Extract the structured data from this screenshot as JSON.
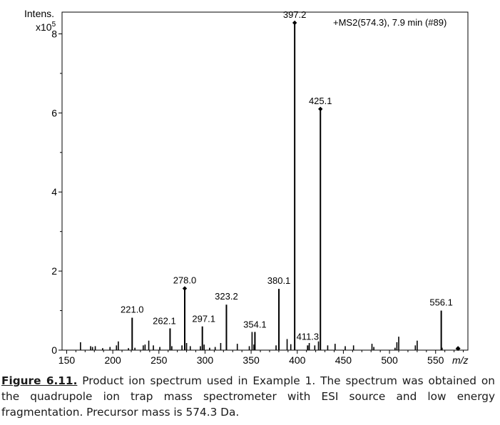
{
  "chart_data": {
    "type": "bar",
    "subtype": "mass-spectrum-stick",
    "ylabel_line1": "Intens.",
    "ylabel_line2": "x10",
    "ylabel_exponent": "5",
    "xlabel": "m/z",
    "header": "+MS2(574.3), 7.9 min (#89)",
    "xlim": [
      145,
      585
    ],
    "ylim": [
      0,
      8.55
    ],
    "xticks": [
      150,
      200,
      250,
      300,
      350,
      400,
      450,
      500,
      550
    ],
    "yticks": [
      0,
      2,
      4,
      6,
      8
    ],
    "labeled_peaks": [
      {
        "mz": 221.0,
        "intensity": 0.82,
        "label": "221.0"
      },
      {
        "mz": 262.1,
        "intensity": 0.55,
        "label": "262.1"
      },
      {
        "mz": 278.0,
        "intensity": 1.56,
        "label": "278.0",
        "marker": true
      },
      {
        "mz": 297.1,
        "intensity": 0.6,
        "label": "297.1"
      },
      {
        "mz": 323.2,
        "intensity": 1.15,
        "label": "323.2"
      },
      {
        "mz": 354.1,
        "intensity": 0.46,
        "label": "354.1"
      },
      {
        "mz": 380.1,
        "intensity": 1.55,
        "label": "380.1"
      },
      {
        "mz": 397.2,
        "intensity": 8.28,
        "label": "397.2",
        "marker": true
      },
      {
        "mz": 411.3,
        "intensity": 0.12,
        "label": "411.3"
      },
      {
        "mz": 425.1,
        "intensity": 6.1,
        "label": "425.1",
        "marker": true
      },
      {
        "mz": 556.1,
        "intensity": 1.0,
        "label": "556.1"
      }
    ],
    "minor_peaks": [
      {
        "mz": 165,
        "intensity": 0.2
      },
      {
        "mz": 176,
        "intensity": 0.1
      },
      {
        "mz": 178,
        "intensity": 0.08
      },
      {
        "mz": 181,
        "intensity": 0.1
      },
      {
        "mz": 189,
        "intensity": 0.05
      },
      {
        "mz": 197,
        "intensity": 0.08
      },
      {
        "mz": 204,
        "intensity": 0.12
      },
      {
        "mz": 206,
        "intensity": 0.22
      },
      {
        "mz": 217,
        "intensity": 0.05
      },
      {
        "mz": 224,
        "intensity": 0.06
      },
      {
        "mz": 233,
        "intensity": 0.12
      },
      {
        "mz": 235,
        "intensity": 0.14
      },
      {
        "mz": 239,
        "intensity": 0.24
      },
      {
        "mz": 244,
        "intensity": 0.12
      },
      {
        "mz": 251,
        "intensity": 0.08
      },
      {
        "mz": 264,
        "intensity": 0.1
      },
      {
        "mz": 275,
        "intensity": 0.12
      },
      {
        "mz": 280,
        "intensity": 0.18
      },
      {
        "mz": 284,
        "intensity": 0.1
      },
      {
        "mz": 295,
        "intensity": 0.1
      },
      {
        "mz": 299,
        "intensity": 0.14
      },
      {
        "mz": 305,
        "intensity": 0.06
      },
      {
        "mz": 311,
        "intensity": 0.08
      },
      {
        "mz": 317,
        "intensity": 0.18
      },
      {
        "mz": 335,
        "intensity": 0.16
      },
      {
        "mz": 348,
        "intensity": 0.1
      },
      {
        "mz": 351,
        "intensity": 0.46
      },
      {
        "mz": 353,
        "intensity": 0.14
      },
      {
        "mz": 377,
        "intensity": 0.12
      },
      {
        "mz": 389,
        "intensity": 0.28
      },
      {
        "mz": 393,
        "intensity": 0.15
      },
      {
        "mz": 413,
        "intensity": 0.18
      },
      {
        "mz": 419,
        "intensity": 0.12
      },
      {
        "mz": 423,
        "intensity": 0.22
      },
      {
        "mz": 433,
        "intensity": 0.12
      },
      {
        "mz": 441,
        "intensity": 0.16
      },
      {
        "mz": 452,
        "intensity": 0.1
      },
      {
        "mz": 461,
        "intensity": 0.12
      },
      {
        "mz": 481,
        "intensity": 0.16
      },
      {
        "mz": 483,
        "intensity": 0.08
      },
      {
        "mz": 506,
        "intensity": 0.06
      },
      {
        "mz": 508,
        "intensity": 0.2
      },
      {
        "mz": 510,
        "intensity": 0.34
      },
      {
        "mz": 528,
        "intensity": 0.12
      },
      {
        "mz": 530,
        "intensity": 0.24
      },
      {
        "mz": 557,
        "intensity": 0.06
      }
    ],
    "precursor_marker": {
      "mz": 574.3,
      "intensity": 0.04
    }
  },
  "caption": {
    "label": "Figure 6.11.",
    "text": "Product ion spectrum used in Example 1. The spectrum was obtained on the quadrupole ion trap mass spectrometer with ESI source and low energy fragmentation. Precursor mass is 574.3 Da."
  }
}
